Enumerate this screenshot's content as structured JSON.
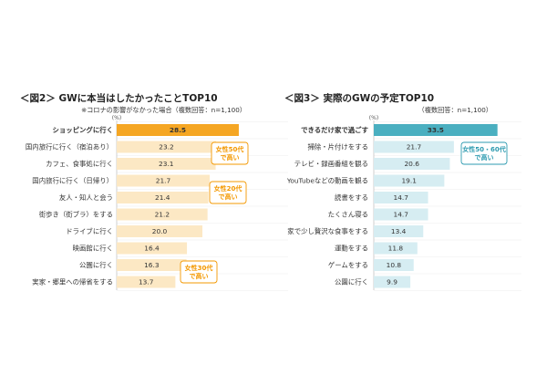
{
  "chart_data": [
    {
      "type": "bar",
      "orientation": "horizontal",
      "title": "＜図2＞ GWに本当はしたかったことTOP10",
      "subtitle_lines": [
        "※コロナの影響がなかった場合（複数回答：n=1,100）"
      ],
      "unit": "(%)",
      "categories": [
        "ショッピングに行く",
        "国内旅行に行く（宿泊あり）",
        "カフェ、食事処に行く",
        "国内旅行に行く（日帰り）",
        "友人・知人と会う",
        "街歩き（街ブラ）をする",
        "ドライブに行く",
        "映画館に行く",
        "公園に行く",
        "実家・郷里への帰省をする"
      ],
      "values": [
        28.5,
        23.2,
        23.1,
        21.7,
        21.4,
        21.2,
        20.0,
        16.4,
        16.3,
        13.7
      ],
      "value_labels": [
        "28.5",
        "23.2",
        "23.1",
        "21.7",
        "21.4",
        "21.2",
        "20.0",
        "16.4",
        "16.3",
        "13.7"
      ],
      "xlim": [
        0,
        40
      ],
      "colors": {
        "highlight": "#F5A623",
        "bar": "#FCE8C4",
        "highlight_text": "#F39800",
        "callout": "#F39800"
      },
      "callouts": [
        {
          "lines": [
            "女性50代",
            "で高い"
          ],
          "category": "カフェ、食事処に行く"
        },
        {
          "lines": [
            "女性20代",
            "で高い"
          ],
          "category": "友人・知人と会う"
        },
        {
          "lines": [
            "女性30代",
            "で高い"
          ],
          "category": "実家・郷里への帰省をする"
        }
      ]
    },
    {
      "type": "bar",
      "orientation": "horizontal",
      "title": "＜図3＞ 実際のGWの予定TOP10",
      "subtitle_lines": [
        "（複数回答：n=1,100）"
      ],
      "unit": "(%)",
      "categories": [
        "できるだけ家で過ごす",
        "掃除・片付けをする",
        "テレビ・録画番組を観る",
        "YouTubeなどの動画を観る",
        "読書をする",
        "たくさん寝る",
        "家で少し贅沢な食事をする",
        "運動をする",
        "ゲームをする",
        "公園に行く"
      ],
      "values": [
        33.5,
        21.7,
        20.6,
        19.1,
        14.7,
        14.7,
        13.4,
        11.8,
        10.8,
        9.9
      ],
      "value_labels": [
        "33.5",
        "21.7",
        "20.6",
        "19.1",
        "14.7",
        "14.7",
        "13.4",
        "11.8",
        "10.8",
        "9.9"
      ],
      "xlim": [
        0,
        40
      ],
      "colors": {
        "highlight": "#4AAFC0",
        "bar": "#D6EDF2",
        "highlight_text": "#2E9BB0",
        "callout": "#2E9BB0"
      },
      "callouts": [
        {
          "lines": [
            "女性50・60代",
            "で高い"
          ],
          "category": "掃除・片付けをする"
        }
      ]
    }
  ]
}
